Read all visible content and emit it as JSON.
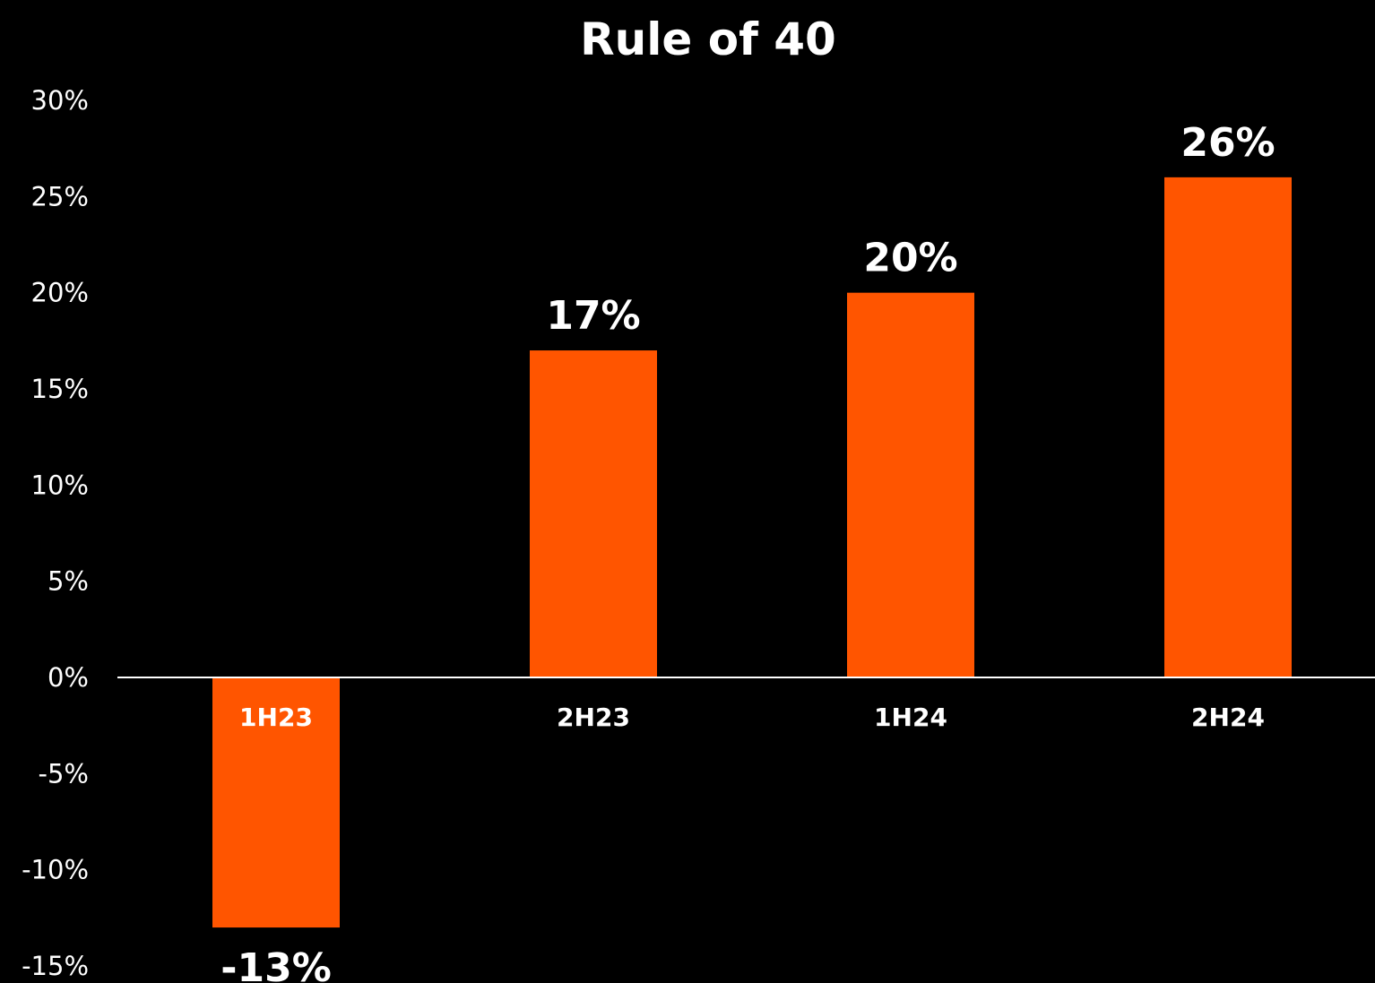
{
  "chart_data": {
    "type": "bar",
    "title": "Rule of 40",
    "xlabel": "",
    "ylabel": "",
    "categories": [
      "1H23",
      "2H23",
      "1H24",
      "2H24"
    ],
    "values": [
      -13,
      17,
      20,
      26
    ],
    "data_labels": [
      "-13%",
      "17%",
      "20%",
      "26%"
    ],
    "ylim": [
      -15,
      30
    ],
    "y_ticks": [
      30,
      25,
      20,
      15,
      10,
      5,
      0,
      -5,
      -10,
      -15
    ],
    "y_tick_labels": [
      "30%",
      "25%",
      "20%",
      "15%",
      "10%",
      "5%",
      "0%",
      "-5%",
      "-10%",
      "-15%"
    ],
    "grid": false,
    "legend": "none",
    "colors": {
      "background": "#000000",
      "bar": "#FF5500",
      "text": "#FFFFFF",
      "axis": "#FFFFFF"
    }
  }
}
